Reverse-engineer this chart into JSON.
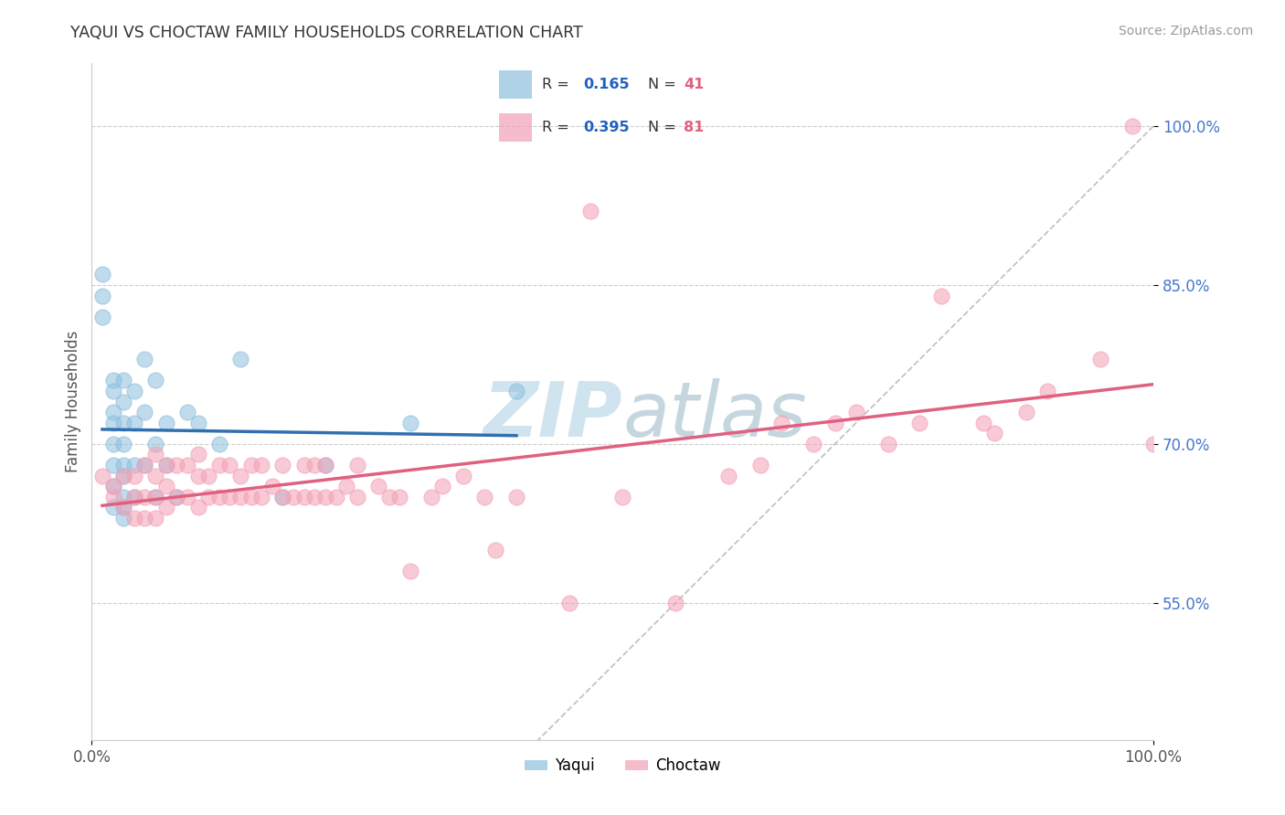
{
  "title": "YAQUI VS CHOCTAW FAMILY HOUSEHOLDS CORRELATION CHART",
  "source_text": "Source: ZipAtlas.com",
  "ylabel": "Family Households",
  "xlim": [
    0.0,
    1.0
  ],
  "ylim": [
    0.42,
    1.06
  ],
  "ytick_positions": [
    0.55,
    0.7,
    0.85,
    1.0
  ],
  "ytick_labels": [
    "55.0%",
    "70.0%",
    "85.0%",
    "100.0%"
  ],
  "yaqui_R": 0.165,
  "yaqui_N": 41,
  "choctaw_R": 0.395,
  "choctaw_N": 81,
  "yaqui_color": "#8dbfde",
  "choctaw_color": "#f4a0b5",
  "yaqui_trend_color": "#3070b0",
  "choctaw_trend_color": "#e06080",
  "ref_line_color": "#aaaaaa",
  "background_color": "#ffffff",
  "watermark_color": "#d0e4f0",
  "legend_color_R": "#2060c0",
  "legend_color_N": "#e06080",
  "yaqui_x": [
    0.01,
    0.01,
    0.01,
    0.02,
    0.02,
    0.02,
    0.02,
    0.02,
    0.02,
    0.02,
    0.02,
    0.03,
    0.03,
    0.03,
    0.03,
    0.03,
    0.03,
    0.03,
    0.03,
    0.03,
    0.04,
    0.04,
    0.04,
    0.04,
    0.05,
    0.05,
    0.05,
    0.06,
    0.06,
    0.06,
    0.07,
    0.07,
    0.08,
    0.09,
    0.1,
    0.12,
    0.14,
    0.18,
    0.22,
    0.3,
    0.4
  ],
  "yaqui_y": [
    0.86,
    0.84,
    0.82,
    0.76,
    0.75,
    0.73,
    0.72,
    0.7,
    0.68,
    0.66,
    0.64,
    0.76,
    0.74,
    0.72,
    0.7,
    0.68,
    0.67,
    0.65,
    0.64,
    0.63,
    0.75,
    0.72,
    0.68,
    0.65,
    0.78,
    0.73,
    0.68,
    0.76,
    0.7,
    0.65,
    0.72,
    0.68,
    0.65,
    0.73,
    0.72,
    0.7,
    0.78,
    0.65,
    0.68,
    0.72,
    0.75
  ],
  "choctaw_x": [
    0.01,
    0.02,
    0.02,
    0.03,
    0.03,
    0.04,
    0.04,
    0.04,
    0.05,
    0.05,
    0.05,
    0.06,
    0.06,
    0.06,
    0.06,
    0.07,
    0.07,
    0.07,
    0.08,
    0.08,
    0.09,
    0.09,
    0.1,
    0.1,
    0.1,
    0.11,
    0.11,
    0.12,
    0.12,
    0.13,
    0.13,
    0.14,
    0.14,
    0.15,
    0.15,
    0.16,
    0.16,
    0.17,
    0.18,
    0.18,
    0.19,
    0.2,
    0.2,
    0.21,
    0.21,
    0.22,
    0.22,
    0.23,
    0.24,
    0.25,
    0.25,
    0.27,
    0.28,
    0.29,
    0.3,
    0.32,
    0.33,
    0.35,
    0.37,
    0.38,
    0.4,
    0.45,
    0.47,
    0.5,
    0.55,
    0.6,
    0.63,
    0.65,
    0.68,
    0.7,
    0.72,
    0.75,
    0.78,
    0.8,
    0.84,
    0.85,
    0.88,
    0.9,
    0.95,
    0.98,
    1.0
  ],
  "choctaw_y": [
    0.67,
    0.65,
    0.66,
    0.64,
    0.67,
    0.63,
    0.65,
    0.67,
    0.63,
    0.65,
    0.68,
    0.63,
    0.65,
    0.67,
    0.69,
    0.64,
    0.66,
    0.68,
    0.65,
    0.68,
    0.65,
    0.68,
    0.64,
    0.67,
    0.69,
    0.65,
    0.67,
    0.65,
    0.68,
    0.65,
    0.68,
    0.65,
    0.67,
    0.65,
    0.68,
    0.65,
    0.68,
    0.66,
    0.65,
    0.68,
    0.65,
    0.65,
    0.68,
    0.65,
    0.68,
    0.65,
    0.68,
    0.65,
    0.66,
    0.65,
    0.68,
    0.66,
    0.65,
    0.65,
    0.58,
    0.65,
    0.66,
    0.67,
    0.65,
    0.6,
    0.65,
    0.55,
    0.92,
    0.65,
    0.55,
    0.67,
    0.68,
    0.72,
    0.7,
    0.72,
    0.73,
    0.7,
    0.72,
    0.84,
    0.72,
    0.71,
    0.73,
    0.75,
    0.78,
    1.0,
    0.7
  ]
}
